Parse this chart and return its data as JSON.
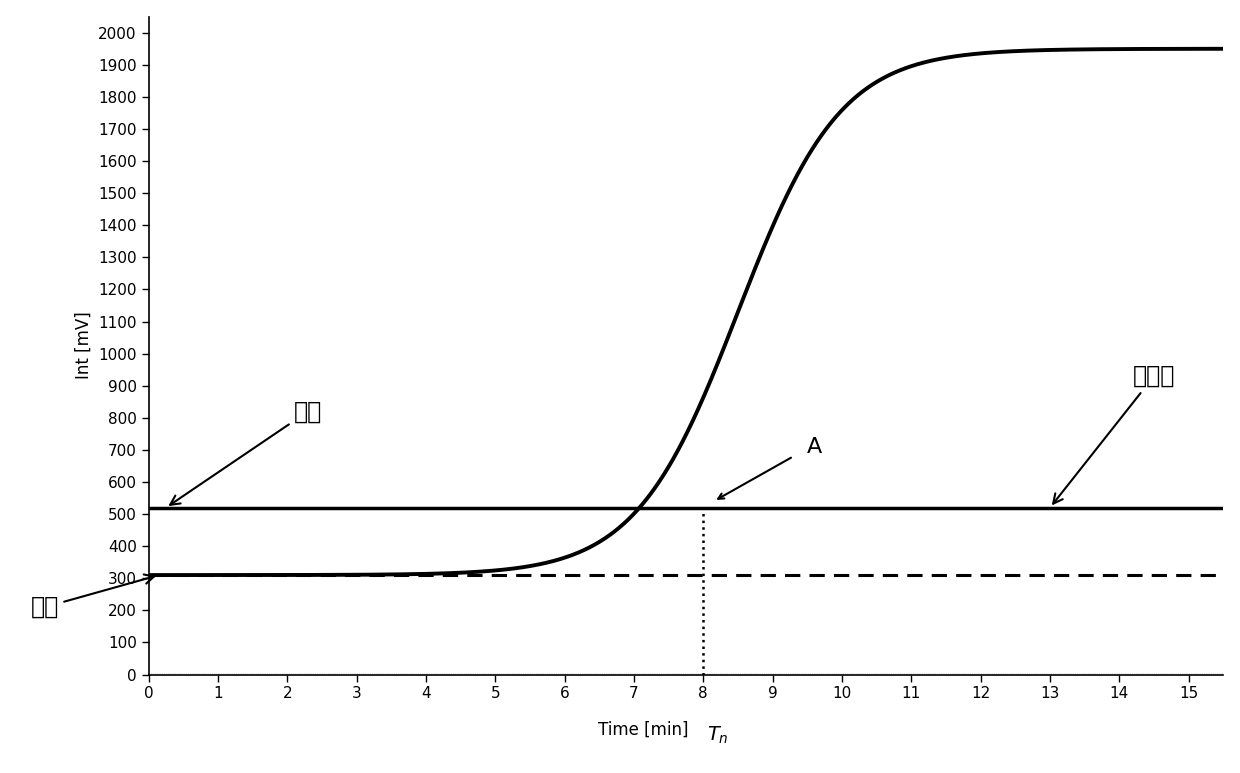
{
  "xlim": [
    0,
    15.5
  ],
  "ylim": [
    0,
    2050
  ],
  "xticks": [
    0,
    1,
    2,
    3,
    4,
    5,
    6,
    7,
    8,
    9,
    10,
    11,
    12,
    13,
    14,
    15
  ],
  "yticks": [
    0,
    100,
    200,
    300,
    400,
    500,
    600,
    700,
    800,
    900,
    1000,
    1100,
    1200,
    1300,
    1400,
    1500,
    1600,
    1700,
    1800,
    1900,
    2000
  ],
  "ylabel": "Int [mV]",
  "xlabel": "Time [min]",
  "threshold_y": 520,
  "baseline_y": 310,
  "Tn_x": 8.0,
  "label_A": "A",
  "label_threshold": "阈値",
  "label_threshold_line": "阈値线",
  "label_baseline": "基线",
  "background_color": "#ffffff",
  "line_color": "#000000",
  "sigmoid_k": 1.35,
  "sigmoid_t0": 8.5,
  "sigmoid_max": 1950
}
